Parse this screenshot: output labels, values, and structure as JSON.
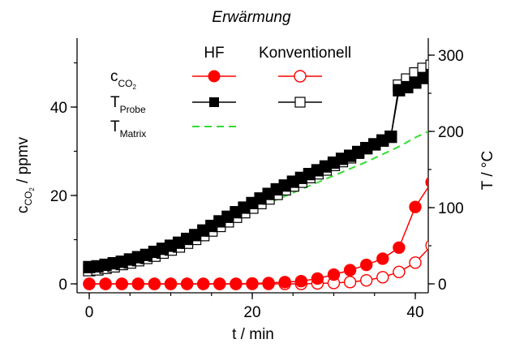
{
  "chart_data": {
    "type": "scatter",
    "title": "Erwärmung",
    "xlabel": "t / min",
    "ylabel_left": {
      "main": "c",
      "sub": "CO",
      "subsub": "2",
      "unit": " / ppmv"
    },
    "ylabel_right": "T / °C",
    "xlim": [
      -1,
      42
    ],
    "ylim_left": [
      -2,
      55
    ],
    "ylim_right": [
      -13,
      329
    ],
    "x_ticks": [
      0,
      20,
      40
    ],
    "y_left_ticks": [
      0,
      20,
      40
    ],
    "y_right_ticks": [
      0,
      100,
      200,
      300
    ],
    "legend": {
      "col_headers": [
        "HF",
        "Konventionell"
      ],
      "rows": [
        {
          "main": "c",
          "sub": "CO",
          "subsub": "2"
        },
        {
          "main": "T",
          "sub": "Probe"
        },
        {
          "main": "T",
          "sub": "Matrix"
        }
      ]
    },
    "series": [
      {
        "name": "c_CO2 HF",
        "axis": "left",
        "marker": "circle",
        "filled": true,
        "color": "#ff0000",
        "x": [
          0,
          2,
          4,
          6,
          8,
          10,
          12,
          14,
          16,
          18,
          20,
          22,
          24,
          26,
          28,
          30,
          32,
          34,
          36,
          38,
          40,
          42
        ],
        "y": [
          0,
          0,
          0,
          0,
          0,
          0,
          0,
          0,
          0,
          0,
          0.1,
          0.2,
          0.4,
          0.6,
          1.2,
          2.1,
          3.1,
          4.3,
          5.7,
          8.2,
          17.4,
          23
        ]
      },
      {
        "name": "c_CO2 Konventionell",
        "axis": "left",
        "marker": "circle",
        "filled": false,
        "color": "#ff0000",
        "x": [
          0,
          2,
          4,
          6,
          8,
          10,
          12,
          14,
          16,
          18,
          20,
          22,
          24,
          26,
          28,
          30,
          32,
          34,
          36,
          38,
          40,
          42
        ],
        "y": [
          0,
          0,
          0,
          0,
          0,
          0,
          0,
          0,
          0,
          0,
          0,
          0,
          0,
          0,
          0.1,
          0.2,
          0.4,
          0.8,
          1.5,
          2.7,
          4.8,
          8.7
        ]
      },
      {
        "name": "T_Probe HF",
        "axis": "right",
        "marker": "square",
        "filled": true,
        "color": "#000000",
        "x": [
          0,
          1,
          2,
          3,
          4,
          5,
          6,
          7,
          8,
          9,
          10,
          11,
          12,
          13,
          14,
          15,
          16,
          17,
          18,
          19,
          20,
          21,
          22,
          23,
          24,
          25,
          26,
          27,
          28,
          29,
          30,
          31,
          32,
          33,
          34,
          35,
          36,
          37,
          38,
          39,
          40,
          41,
          42
        ],
        "y": [
          22,
          23,
          25,
          27,
          29,
          32,
          35,
          38,
          42,
          46,
          50,
          54,
          59,
          64,
          70,
          76,
          82,
          88,
          94,
          100,
          106,
          112,
          118,
          124,
          129,
          134,
          139,
          144,
          149,
          154,
          159,
          164,
          168,
          173,
          178,
          183,
          188,
          193,
          254,
          258,
          264,
          270,
          274
        ]
      },
      {
        "name": "T_Probe Konventionell",
        "axis": "right",
        "marker": "square",
        "filled": false,
        "color": "#000000",
        "x": [
          0,
          1,
          2,
          3,
          4,
          5,
          6,
          7,
          8,
          9,
          10,
          11,
          12,
          13,
          14,
          15,
          16,
          17,
          18,
          19,
          20,
          21,
          22,
          23,
          24,
          25,
          26,
          27,
          28,
          29,
          30,
          31,
          32,
          33,
          34,
          35,
          36,
          37,
          38,
          39,
          40,
          41,
          42
        ],
        "y": [
          18,
          19,
          21,
          23,
          26,
          28,
          31,
          34,
          37,
          41,
          45,
          49,
          54,
          59,
          64,
          70,
          76,
          82,
          88,
          94,
          100,
          106,
          112,
          118,
          124,
          129,
          134,
          140,
          145,
          150,
          156,
          161,
          166,
          172,
          178,
          183,
          188,
          193,
          260,
          268,
          276,
          282,
          286
        ]
      },
      {
        "name": "T_Matrix",
        "axis": "right",
        "marker": "dashed-line",
        "color": "#33dd33",
        "x": [
          0,
          2,
          4,
          6,
          8,
          10,
          12,
          14,
          16,
          18,
          20,
          22,
          24,
          26,
          28,
          30,
          32,
          34,
          36,
          38,
          40,
          42
        ],
        "y": [
          20,
          23,
          27,
          31,
          36,
          42,
          50,
          60,
          72,
          84,
          95,
          106,
          115,
          124,
          133,
          142,
          151,
          160,
          170,
          180,
          192,
          202
        ]
      }
    ]
  }
}
